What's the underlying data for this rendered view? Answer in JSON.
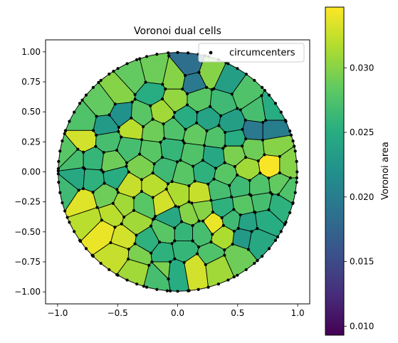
{
  "chart_data": {
    "type": "heatmap",
    "title": "Voronoi dual cells",
    "xlabel": "",
    "ylabel": "",
    "xlim": [
      -1.1,
      1.1
    ],
    "ylim": [
      -1.1,
      1.1
    ],
    "xticks": [
      "−1.0",
      "−0.5",
      "0.0",
      "0.5",
      "1.0"
    ],
    "xtick_values": [
      -1.0,
      -0.5,
      0.0,
      0.5,
      1.0
    ],
    "yticks": [
      "1.00",
      "0.75",
      "0.50",
      "0.25",
      "0.00",
      "−0.25",
      "−0.50",
      "−0.75",
      "−1.00"
    ],
    "ytick_values": [
      1.0,
      0.75,
      0.5,
      0.25,
      0.0,
      -0.25,
      -0.5,
      -0.75,
      -1.0
    ],
    "legend": {
      "placement": "top-right",
      "entries": [
        "circumcenters"
      ]
    },
    "colorbar": {
      "label": "Voronoi area",
      "colormap": "viridis",
      "range": [
        0.0093,
        0.0347
      ],
      "ticks": [
        "0.030",
        "0.025",
        "0.020",
        "0.015",
        "0.010"
      ],
      "tick_values": [
        0.03,
        0.025,
        0.02,
        0.015,
        0.01
      ]
    },
    "cells": [
      {
        "x": 0.1,
        "y": 0.88,
        "area": 0.0185
      },
      {
        "x": 0.27,
        "y": 0.82,
        "area": 0.03
      },
      {
        "x": 0.13,
        "y": 0.75,
        "area": 0.0195
      },
      {
        "x": -0.2,
        "y": 0.82,
        "area": 0.029
      },
      {
        "x": -0.36,
        "y": 0.78,
        "area": 0.0285
      },
      {
        "x": -0.02,
        "y": 0.78,
        "area": 0.03
      },
      {
        "x": 0.42,
        "y": 0.75,
        "area": 0.0235
      },
      {
        "x": 0.56,
        "y": 0.65,
        "area": 0.0275
      },
      {
        "x": -0.49,
        "y": 0.66,
        "area": 0.03
      },
      {
        "x": -0.62,
        "y": 0.56,
        "area": 0.0285
      },
      {
        "x": -0.22,
        "y": 0.66,
        "area": 0.025
      },
      {
        "x": -0.02,
        "y": 0.6,
        "area": 0.0305
      },
      {
        "x": 0.18,
        "y": 0.6,
        "area": 0.028
      },
      {
        "x": 0.37,
        "y": 0.58,
        "area": 0.0265
      },
      {
        "x": 0.66,
        "y": 0.5,
        "area": 0.027
      },
      {
        "x": 0.78,
        "y": 0.52,
        "area": 0.025
      },
      {
        "x": -0.78,
        "y": 0.42,
        "area": 0.0275
      },
      {
        "x": -0.47,
        "y": 0.48,
        "area": 0.022
      },
      {
        "x": -0.3,
        "y": 0.47,
        "area": 0.028
      },
      {
        "x": -0.13,
        "y": 0.5,
        "area": 0.031
      },
      {
        "x": 0.07,
        "y": 0.45,
        "area": 0.025
      },
      {
        "x": 0.25,
        "y": 0.44,
        "area": 0.024
      },
      {
        "x": 0.45,
        "y": 0.4,
        "area": 0.0235
      },
      {
        "x": -0.6,
        "y": 0.38,
        "area": 0.023
      },
      {
        "x": -0.38,
        "y": 0.36,
        "area": 0.032
      },
      {
        "x": -0.2,
        "y": 0.34,
        "area": 0.029
      },
      {
        "x": -0.03,
        "y": 0.35,
        "area": 0.0275
      },
      {
        "x": 0.15,
        "y": 0.31,
        "area": 0.0285
      },
      {
        "x": 0.32,
        "y": 0.28,
        "area": 0.0275
      },
      {
        "x": 0.47,
        "y": 0.28,
        "area": 0.025
      },
      {
        "x": 0.64,
        "y": 0.34,
        "area": 0.0195
      },
      {
        "x": 0.78,
        "y": 0.34,
        "area": 0.02
      },
      {
        "x": -0.78,
        "y": 0.27,
        "area": 0.033
      },
      {
        "x": -0.58,
        "y": 0.26,
        "area": 0.027
      },
      {
        "x": -0.4,
        "y": 0.2,
        "area": 0.027
      },
      {
        "x": -0.22,
        "y": 0.17,
        "area": 0.028
      },
      {
        "x": -0.05,
        "y": 0.19,
        "area": 0.026
      },
      {
        "x": 0.13,
        "y": 0.15,
        "area": 0.0275
      },
      {
        "x": 0.3,
        "y": 0.13,
        "area": 0.0245
      },
      {
        "x": 0.47,
        "y": 0.15,
        "area": 0.0295
      },
      {
        "x": 0.63,
        "y": 0.2,
        "area": 0.029
      },
      {
        "x": 0.8,
        "y": 0.22,
        "area": 0.03
      },
      {
        "x": -0.87,
        "y": 0.1,
        "area": 0.027
      },
      {
        "x": -0.7,
        "y": 0.1,
        "area": 0.026
      },
      {
        "x": -0.55,
        "y": 0.08,
        "area": 0.029
      },
      {
        "x": -0.3,
        "y": 0.05,
        "area": 0.0295
      },
      {
        "x": -0.1,
        "y": 0.02,
        "area": 0.0265
      },
      {
        "x": 0.05,
        "y": -0.02,
        "area": 0.028
      },
      {
        "x": 0.22,
        "y": 0.0,
        "area": 0.0255
      },
      {
        "x": 0.4,
        "y": -0.03,
        "area": 0.028
      },
      {
        "x": 0.58,
        "y": 0.02,
        "area": 0.031
      },
      {
        "x": 0.78,
        "y": 0.05,
        "area": 0.0345
      },
      {
        "x": -0.85,
        "y": -0.05,
        "area": 0.0245
      },
      {
        "x": -0.71,
        "y": -0.06,
        "area": 0.0255
      },
      {
        "x": -0.52,
        "y": -0.04,
        "area": 0.025
      },
      {
        "x": -0.4,
        "y": -0.12,
        "area": 0.0325
      },
      {
        "x": -0.2,
        "y": -0.12,
        "area": 0.032
      },
      {
        "x": 0.01,
        "y": -0.18,
        "area": 0.0315
      },
      {
        "x": 0.18,
        "y": -0.18,
        "area": 0.0325
      },
      {
        "x": 0.35,
        "y": -0.15,
        "area": 0.027
      },
      {
        "x": 0.52,
        "y": -0.12,
        "area": 0.0265
      },
      {
        "x": 0.68,
        "y": -0.12,
        "area": 0.0275
      },
      {
        "x": 0.85,
        "y": -0.1,
        "area": 0.0285
      },
      {
        "x": -0.78,
        "y": -0.25,
        "area": 0.0335
      },
      {
        "x": -0.6,
        "y": -0.2,
        "area": 0.029
      },
      {
        "x": -0.45,
        "y": -0.27,
        "area": 0.031
      },
      {
        "x": -0.28,
        "y": -0.27,
        "area": 0.028
      },
      {
        "x": -0.12,
        "y": -0.25,
        "area": 0.033
      },
      {
        "x": 0.2,
        "y": -0.32,
        "area": 0.03
      },
      {
        "x": 0.38,
        "y": -0.3,
        "area": 0.0255
      },
      {
        "x": 0.55,
        "y": -0.28,
        "area": 0.028
      },
      {
        "x": 0.7,
        "y": -0.25,
        "area": 0.027
      },
      {
        "x": 0.84,
        "y": -0.28,
        "area": 0.0255
      },
      {
        "x": -0.73,
        "y": -0.4,
        "area": 0.032
      },
      {
        "x": -0.55,
        "y": -0.35,
        "area": 0.032
      },
      {
        "x": -0.35,
        "y": -0.42,
        "area": 0.031
      },
      {
        "x": -0.05,
        "y": -0.39,
        "area": 0.0245
      },
      {
        "x": 0.1,
        "y": -0.36,
        "area": 0.03
      },
      {
        "x": 0.3,
        "y": -0.43,
        "area": 0.034
      },
      {
        "x": 0.45,
        "y": -0.4,
        "area": 0.0265
      },
      {
        "x": 0.58,
        "y": -0.42,
        "area": 0.024
      },
      {
        "x": 0.73,
        "y": -0.4,
        "area": 0.025
      },
      {
        "x": -0.63,
        "y": -0.5,
        "area": 0.034
      },
      {
        "x": -0.45,
        "y": -0.55,
        "area": 0.033
      },
      {
        "x": -0.25,
        "y": -0.58,
        "area": 0.0255
      },
      {
        "x": -0.1,
        "y": -0.5,
        "area": 0.028
      },
      {
        "x": 0.05,
        "y": -0.5,
        "area": 0.026
      },
      {
        "x": 0.2,
        "y": -0.5,
        "area": 0.027
      },
      {
        "x": 0.38,
        "y": -0.53,
        "area": 0.0315
      },
      {
        "x": 0.55,
        "y": -0.55,
        "area": 0.023
      },
      {
        "x": 0.66,
        "y": -0.57,
        "area": 0.0245
      },
      {
        "x": -0.5,
        "y": -0.69,
        "area": 0.0325
      },
      {
        "x": -0.32,
        "y": -0.7,
        "area": 0.0295
      },
      {
        "x": -0.12,
        "y": -0.68,
        "area": 0.0255
      },
      {
        "x": 0.05,
        "y": -0.65,
        "area": 0.026
      },
      {
        "x": 0.28,
        "y": -0.7,
        "area": 0.0275
      },
      {
        "x": 0.5,
        "y": -0.7,
        "area": 0.029
      },
      {
        "x": -0.35,
        "y": -0.8,
        "area": 0.031
      },
      {
        "x": -0.12,
        "y": -0.82,
        "area": 0.0295
      },
      {
        "x": -0.15,
        "y": -0.85,
        "area": 0.027
      },
      {
        "x": -0.02,
        "y": -0.83,
        "area": 0.025
      },
      {
        "x": 0.15,
        "y": -0.8,
        "area": 0.033
      },
      {
        "x": 0.32,
        "y": -0.78,
        "area": 0.031
      },
      {
        "x": -0.93,
        "y": -0.15,
        "area": 0.0265
      },
      {
        "x": -0.92,
        "y": 0.15,
        "area": 0.028
      },
      {
        "x": 0.92,
        "y": 0.05,
        "area": 0.03
      },
      {
        "x": 0.92,
        "y": -0.15,
        "area": 0.0275
      }
    ]
  }
}
